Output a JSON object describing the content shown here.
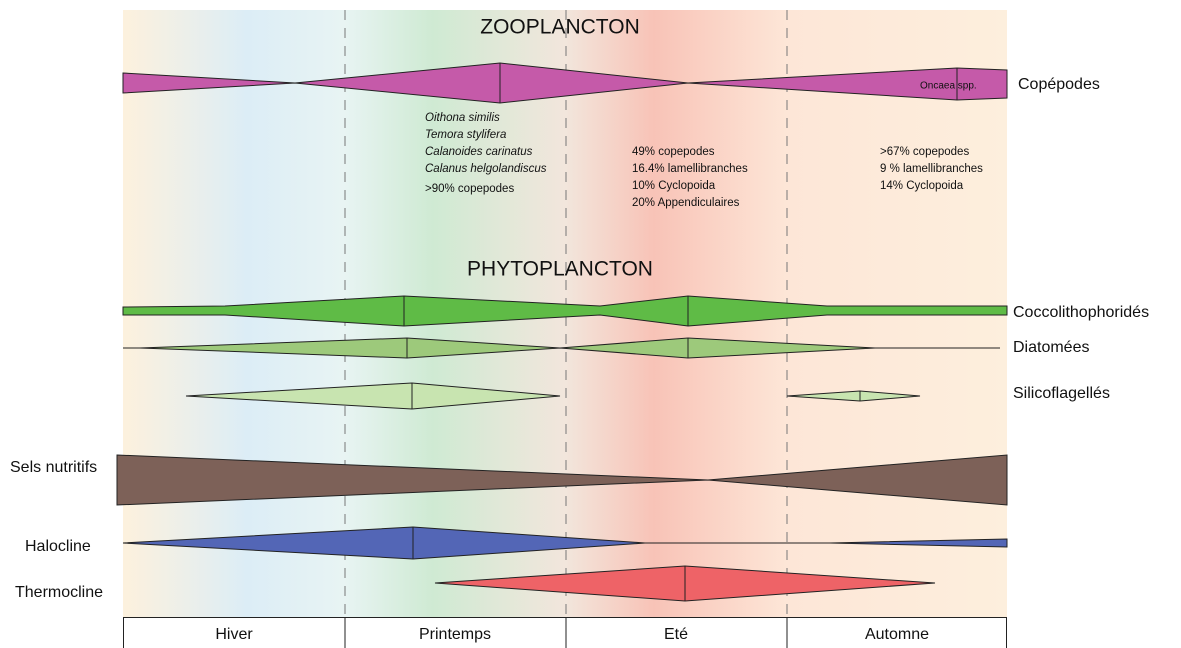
{
  "zooplankton": {
    "title": "ZOOPLANCTON",
    "row": "Copépodes",
    "note": "Oncaea spp.",
    "spring_species": [
      "Oithona similis",
      "Temora stylifera",
      "Calanoides carinatus",
      "Calanus helgolandiscus"
    ],
    "spring_share": ">90% copepodes",
    "summer_composition": [
      "49% copepodes",
      "16.4% lamellibranches",
      "10% Cyclopoida",
      "20% Appendiculaires"
    ],
    "autumn_composition": [
      ">67% copepodes",
      "9 % lamellibranches",
      "14% Cyclopoida"
    ]
  },
  "phytoplankton": {
    "title": "PHYTOPLANCTON",
    "rows": [
      "Coccolithophoridés",
      "Diatomées",
      "Silicoflagellés"
    ]
  },
  "environment": {
    "rows": [
      "Sels nutritifs",
      "Halocline",
      "Thermocline"
    ]
  },
  "seasons": [
    "Hiver",
    "Printemps",
    "Eté",
    "Automne"
  ]
}
